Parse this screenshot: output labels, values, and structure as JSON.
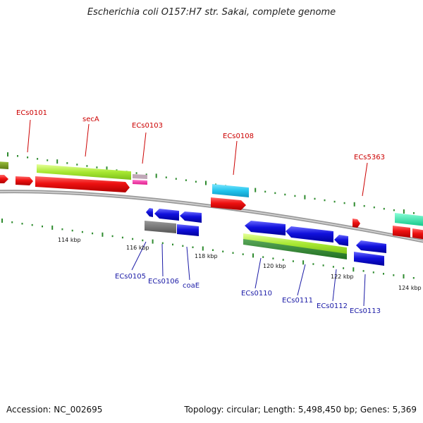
{
  "title": "Escherichia coli O157:H7 str. Sakai, complete genome",
  "footer": {
    "accession": "Accession: NC_002695",
    "summary": "Topology: circular; Length: 5,498,450 bp; Genes: 5,369"
  },
  "colors": {
    "forward_label": "#cc0000",
    "reverse_label": "#1a1aa6",
    "backbone": "#8a8a8a",
    "cds_forward": "#ee1111",
    "cds_reverse": "#1111dd",
    "tick": "#2e8b2e"
  },
  "kbp_labels": [
    "114 kbp",
    "116 kbp",
    "118 kbp",
    "120 kbp",
    "122 kbp",
    "124 kbp"
  ],
  "forward_gene_labels": [
    "ECs0101",
    "secA",
    "ECs0103",
    "ECs0108",
    "ECs5363"
  ],
  "reverse_gene_labels": [
    "ECs0105",
    "ECs0106",
    "coaE",
    "ECs0110",
    "ECs0111",
    "ECs0112",
    "ECs0113"
  ]
}
